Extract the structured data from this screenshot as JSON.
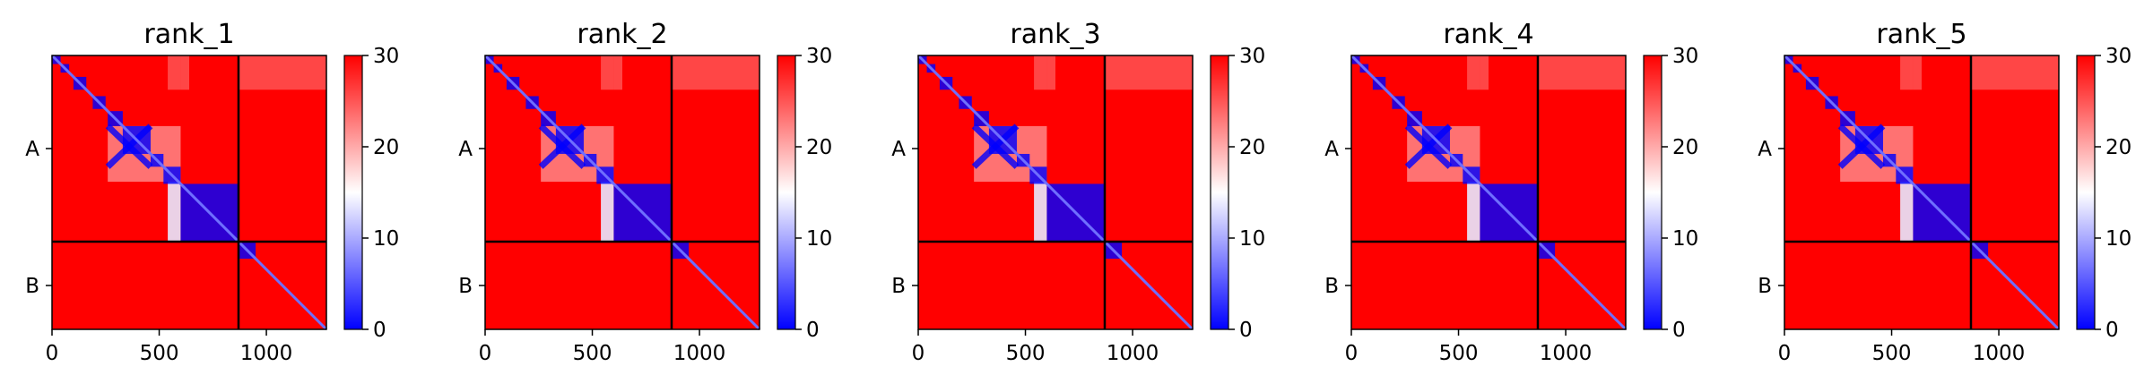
{
  "chart_data": [
    {
      "type": "heatmap",
      "title": "rank_1",
      "xticks": [
        0,
        500,
        1000
      ],
      "xlim": [
        0,
        1280
      ],
      "chain_labels": [
        "A",
        "B"
      ],
      "chain_boundary": 870,
      "colorbar": {
        "ticks": [
          0,
          10,
          20,
          30
        ],
        "range": [
          0,
          30
        ],
        "low_color": "#0000ff",
        "mid_color": "#ffffff",
        "high_color": "#ff0000"
      },
      "low_error_blocks": [
        [
          0,
          40
        ],
        [
          40,
          80
        ],
        [
          100,
          160
        ],
        [
          190,
          250
        ],
        [
          260,
          330
        ],
        [
          330,
          460
        ],
        [
          460,
          520
        ],
        [
          520,
          600
        ],
        [
          600,
          870
        ],
        [
          870,
          950
        ]
      ]
    },
    {
      "type": "heatmap",
      "title": "rank_2",
      "xticks": [
        0,
        500,
        1000
      ],
      "xlim": [
        0,
        1280
      ],
      "chain_labels": [
        "A",
        "B"
      ],
      "chain_boundary": 870,
      "colorbar": {
        "ticks": [
          0,
          10,
          20,
          30
        ],
        "range": [
          0,
          30
        ],
        "low_color": "#0000ff",
        "mid_color": "#ffffff",
        "high_color": "#ff0000"
      },
      "low_error_blocks": [
        [
          0,
          40
        ],
        [
          40,
          80
        ],
        [
          100,
          160
        ],
        [
          190,
          250
        ],
        [
          260,
          330
        ],
        [
          330,
          460
        ],
        [
          460,
          520
        ],
        [
          520,
          600
        ],
        [
          600,
          870
        ],
        [
          870,
          950
        ]
      ]
    },
    {
      "type": "heatmap",
      "title": "rank_3",
      "xticks": [
        0,
        500,
        1000
      ],
      "xlim": [
        0,
        1280
      ],
      "chain_labels": [
        "A",
        "B"
      ],
      "chain_boundary": 870,
      "colorbar": {
        "ticks": [
          0,
          10,
          20,
          30
        ],
        "range": [
          0,
          30
        ],
        "low_color": "#0000ff",
        "mid_color": "#ffffff",
        "high_color": "#ff0000"
      },
      "low_error_blocks": [
        [
          0,
          40
        ],
        [
          40,
          80
        ],
        [
          100,
          160
        ],
        [
          190,
          250
        ],
        [
          260,
          330
        ],
        [
          330,
          460
        ],
        [
          460,
          520
        ],
        [
          520,
          600
        ],
        [
          600,
          870
        ],
        [
          870,
          950
        ]
      ]
    },
    {
      "type": "heatmap",
      "title": "rank_4",
      "xticks": [
        0,
        500,
        1000
      ],
      "xlim": [
        0,
        1280
      ],
      "chain_labels": [
        "A",
        "B"
      ],
      "chain_boundary": 870,
      "colorbar": {
        "ticks": [
          0,
          10,
          20,
          30
        ],
        "range": [
          0,
          30
        ],
        "low_color": "#0000ff",
        "mid_color": "#ffffff",
        "high_color": "#ff0000"
      },
      "low_error_blocks": [
        [
          0,
          40
        ],
        [
          40,
          80
        ],
        [
          100,
          160
        ],
        [
          190,
          250
        ],
        [
          260,
          330
        ],
        [
          330,
          460
        ],
        [
          460,
          520
        ],
        [
          520,
          600
        ],
        [
          600,
          870
        ],
        [
          870,
          950
        ]
      ]
    },
    {
      "type": "heatmap",
      "title": "rank_5",
      "xticks": [
        0,
        500,
        1000
      ],
      "xlim": [
        0,
        1280
      ],
      "chain_labels": [
        "A",
        "B"
      ],
      "chain_boundary": 870,
      "colorbar": {
        "ticks": [
          0,
          10,
          20,
          30
        ],
        "range": [
          0,
          30
        ],
        "low_color": "#0000ff",
        "mid_color": "#ffffff",
        "high_color": "#ff0000"
      },
      "low_error_blocks": [
        [
          0,
          40
        ],
        [
          40,
          80
        ],
        [
          100,
          160
        ],
        [
          190,
          250
        ],
        [
          260,
          330
        ],
        [
          330,
          460
        ],
        [
          460,
          520
        ],
        [
          520,
          600
        ],
        [
          600,
          870
        ],
        [
          870,
          950
        ]
      ]
    }
  ]
}
